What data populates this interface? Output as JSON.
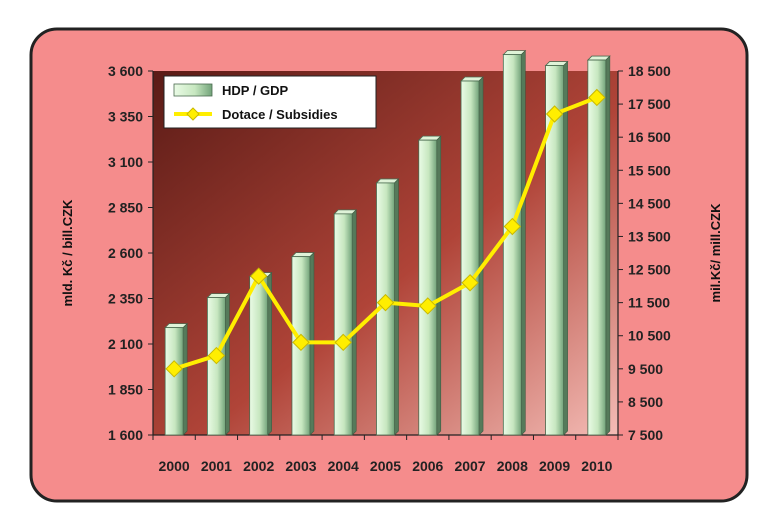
{
  "chart_data": {
    "type": "bar",
    "categories": [
      "2000",
      "2001",
      "2002",
      "2003",
      "2004",
      "2005",
      "2006",
      "2007",
      "2008",
      "2009",
      "2010"
    ],
    "series": [
      {
        "name": "HDP / GDP",
        "type": "bar",
        "axis": "left",
        "values": [
          2190,
          2355,
          2470,
          2580,
          2815,
          2985,
          3220,
          3545,
          3690,
          3630,
          3660
        ]
      },
      {
        "name": "Dotace / Subsidies",
        "type": "line",
        "axis": "right",
        "values": [
          9500,
          9900,
          12300,
          10300,
          10300,
          11500,
          11400,
          12100,
          13800,
          17200,
          17700
        ]
      }
    ],
    "ylabel": "mld. Kč / bill.CZK",
    "y2label": "mil.Kč/ mill.CZK",
    "ylim": [
      1600,
      3600
    ],
    "y2lim": [
      7500,
      18500
    ],
    "yticks": [
      "1 600",
      "1 850",
      "2 100",
      "2 350",
      "2 600",
      "2 850",
      "3 100",
      "3 350",
      "3 600"
    ],
    "y2ticks": [
      "7 500",
      "8 500",
      "9 500",
      "10 500",
      "11 500",
      "12 500",
      "13 500",
      "14 500",
      "15 500",
      "16 500",
      "17 500",
      "18 500"
    ],
    "legend": "top-left",
    "grid": false
  },
  "colors": {
    "frame_bg": "#f58c8c",
    "frame_border": "#222222",
    "plot_dark": "#5a1b16",
    "plot_mid": "#b04438",
    "plot_light": "#f4bcb6",
    "bar_light": "#eafbe6",
    "bar_dark": "#72a37a",
    "line": "#ffee00",
    "marker": "#ffee00"
  }
}
